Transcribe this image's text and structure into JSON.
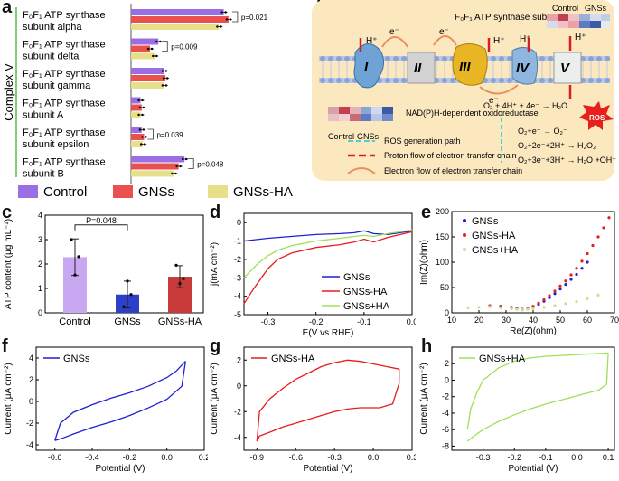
{
  "panels": {
    "a": "a",
    "b": "b",
    "c": "c",
    "d": "d",
    "e": "e",
    "f": "f",
    "g": "g",
    "h": "h"
  },
  "colors": {
    "control": "#9b6fe3",
    "gnss": "#e9514f",
    "gnssha": "#e6e08a",
    "gnsshaDot": "#c5e388",
    "blue": "#1f1fd6",
    "red": "#e81c1c",
    "green": "#9ee05a",
    "membrane": "#f6e2b3"
  },
  "chart_a": {
    "type": "bar",
    "ylabel_group": "Complex V",
    "categories": [
      {
        "line1": "F₀F₁ ATP synthase",
        "line2": "subunit alpha"
      },
      {
        "line1": "F₀F₁ ATP synthase",
        "line2": "subunit delta"
      },
      {
        "line1": "F₀F₁ ATP synthase",
        "line2": "subunit gamma"
      },
      {
        "line1": "F₀F₁ ATP synthase",
        "line2": "subunit A"
      },
      {
        "line1": "F₀F₁ ATP synthase",
        "line2": "subunit epsilon"
      },
      {
        "line1": "F₀F₁ ATP synthase",
        "line2": "subunit B"
      }
    ],
    "series": [
      {
        "name": "Control",
        "values": [
          78,
          23,
          28,
          8,
          9,
          45
        ]
      },
      {
        "name": "GNSs",
        "values": [
          82,
          16,
          29,
          9,
          11,
          40
        ]
      },
      {
        "name": "GNSs-HA",
        "values": [
          74,
          20,
          28,
          8,
          10,
          36
        ]
      }
    ],
    "pvalues": [
      {
        "cat": 0,
        "text": "p=0.021"
      },
      {
        "cat": 1,
        "text": "p=0.009"
      },
      {
        "cat": 4,
        "text": "p=0.039"
      },
      {
        "cat": 5,
        "text": "p=0.048"
      }
    ],
    "legend": [
      "Control",
      "GNSs",
      "GNSs-HA"
    ]
  },
  "diagram_b": {
    "complexes": [
      "I",
      "II",
      "III",
      "IV",
      "V"
    ],
    "labels": {
      "hplus": "H⁺",
      "eminus": "e⁻",
      "atp_title": "F₀F₁ ATP synthase subunit",
      "heat_control": "Control",
      "heat_gnss": "GNSs",
      "nadph": "NAD(P)H-dependent oxidoreductase",
      "water_rxn": "O₂ + 4H⁺ + 4e⁻ → H₂O",
      "ros": "ROS",
      "rxn1": "O₂+e⁻ → O₂⁻",
      "rxn2": "O₂+2e⁻+2H⁺ → H₂O₂",
      "rxn3": "O₂+3e⁻+3H⁺ → H₂O +OH⁻",
      "legend_ros": "ROS generation path",
      "legend_proton": "Proton flow of electron transfer chain",
      "legend_electron": "Electron flow of electron transfer chain"
    }
  },
  "chart_c": {
    "type": "bar",
    "categories": [
      "Control",
      "GNSs",
      "GNSs-HA"
    ],
    "values": [
      2.28,
      0.75,
      1.48
    ],
    "errors": [
      0.75,
      0.55,
      0.45
    ],
    "points": [
      [
        3.0,
        1.55,
        2.3
      ],
      [
        0.25,
        1.3,
        0.75
      ],
      [
        1.95,
        1.2,
        1.4
      ]
    ],
    "ylabel": "ATP content (μg mL⁻¹)",
    "ylim": [
      0,
      4
    ],
    "yticks": [
      "0",
      "1",
      "2",
      "3",
      "4"
    ],
    "annotation": "P=0.048"
  },
  "chart_d": {
    "type": "line",
    "xlabel": "E(V vs RHE)",
    "ylabel": "j(mA cm⁻²)",
    "xlim": [
      -0.35,
      0
    ],
    "ylim": [
      -5,
      0.5
    ],
    "xticks": [
      "-0.3",
      "-0.2",
      "-0.1",
      "0.0"
    ],
    "yticks": [
      "0",
      "-1",
      "-2",
      "-3",
      "-4",
      "-5"
    ],
    "series": [
      {
        "name": "GNSs",
        "x": [
          -0.35,
          -0.3,
          -0.2,
          -0.15,
          -0.12,
          -0.1,
          -0.08,
          -0.05,
          0
        ],
        "y": [
          -1.0,
          -0.85,
          -0.65,
          -0.6,
          -0.55,
          -0.45,
          -0.6,
          -0.65,
          -0.45
        ]
      },
      {
        "name": "GNSs-HA",
        "x": [
          -0.35,
          -0.33,
          -0.3,
          -0.28,
          -0.25,
          -0.2,
          -0.15,
          -0.12,
          -0.1,
          -0.08,
          -0.05,
          0
        ],
        "y": [
          -4.4,
          -3.6,
          -2.5,
          -2.0,
          -1.65,
          -1.35,
          -1.2,
          -1.05,
          -0.9,
          -1.05,
          -0.8,
          -0.5
        ]
      },
      {
        "name": "GNSs+HA",
        "x": [
          -0.35,
          -0.32,
          -0.3,
          -0.28,
          -0.25,
          -0.2,
          -0.15,
          -0.12,
          -0.1,
          -0.08,
          -0.05,
          0
        ],
        "y": [
          -3.0,
          -2.2,
          -1.8,
          -1.5,
          -1.25,
          -1.0,
          -0.85,
          -0.75,
          -0.7,
          -0.75,
          -0.6,
          -0.4
        ]
      }
    ],
    "legend": [
      "GNSs",
      "GNSs-HA",
      "GNSs+HA"
    ]
  },
  "chart_e": {
    "type": "scatter",
    "xlabel": "Re(Z)(ohm)",
    "ylabel": "Im(Z)(ohm)",
    "xlim": [
      10,
      70
    ],
    "ylim": [
      0,
      200
    ],
    "xticks": [
      "10",
      "20",
      "30",
      "40",
      "50",
      "60",
      "70"
    ],
    "yticks": [
      "0",
      "50",
      "100",
      "150",
      "200"
    ],
    "series": [
      {
        "name": "GNSs",
        "x": [
          24,
          28,
          32,
          34,
          36,
          38,
          40,
          42,
          44,
          46,
          48,
          50,
          52,
          54,
          56,
          58,
          60
        ],
        "y": [
          14,
          13,
          11,
          9,
          7,
          8,
          12,
          17,
          23,
          30,
          38,
          47,
          56,
          66,
          76,
          88,
          100
        ]
      },
      {
        "name": "GNSs-HA",
        "x": [
          24,
          28,
          32,
          34,
          36,
          38,
          40,
          42,
          44,
          46,
          48,
          50,
          52,
          54,
          56,
          58,
          60,
          62,
          64,
          66,
          68
        ],
        "y": [
          14,
          12,
          10,
          8,
          6,
          8,
          13,
          19,
          26,
          34,
          43,
          53,
          63,
          75,
          88,
          102,
          117,
          133,
          150,
          168,
          188
        ]
      },
      {
        "name": "GNSs+HA",
        "x": [
          16,
          20,
          24,
          28,
          32,
          34,
          36,
          38,
          40,
          44,
          48,
          52,
          56,
          60,
          64
        ],
        "y": [
          10,
          11,
          12,
          10,
          8,
          7,
          6,
          7,
          8,
          11,
          14,
          18,
          22,
          28,
          35
        ]
      }
    ],
    "legend": [
      "GNSs",
      "GNSs-HA",
      "GNSs+HA"
    ]
  },
  "chart_f": {
    "type": "line",
    "legend": "GNSs",
    "xlabel": "Potential (V)",
    "ylabel": "Current (μA cm⁻²)",
    "xlim": [
      -0.7,
      0.2
    ],
    "ylim": [
      -4.5,
      5
    ],
    "xticks": [
      "-0.6",
      "-0.4",
      "-0.2",
      "0.0",
      "0.2"
    ],
    "yticks": [
      "4",
      "2",
      "0",
      "-2",
      "-4"
    ],
    "upper": {
      "x": [
        -0.6,
        -0.57,
        -0.5,
        -0.4,
        -0.3,
        -0.2,
        -0.1,
        0.0,
        0.05,
        0.1
      ],
      "y": [
        -3.6,
        -2.0,
        -1.0,
        -0.3,
        0.3,
        0.8,
        1.4,
        2.2,
        2.8,
        3.7
      ]
    },
    "lower": {
      "x": [
        0.1,
        0.08,
        0.0,
        -0.1,
        -0.2,
        -0.3,
        -0.4,
        -0.5,
        -0.56,
        -0.6
      ],
      "y": [
        3.7,
        1.4,
        0.2,
        -0.6,
        -1.3,
        -1.9,
        -2.4,
        -3.0,
        -3.4,
        -3.6
      ]
    }
  },
  "chart_g": {
    "type": "line",
    "legend": "GNSs-HA",
    "xlabel": "Potential (V)",
    "ylabel": "Current (μA cm⁻²)",
    "xlim": [
      -1.0,
      0.3
    ],
    "ylim": [
      -5,
      3
    ],
    "xticks": [
      "-0.9",
      "-0.6",
      "-0.3",
      "0.0",
      "0.3"
    ],
    "yticks": [
      "2",
      "0",
      "-2",
      "-4"
    ],
    "upper": {
      "x": [
        -0.9,
        -0.88,
        -0.8,
        -0.7,
        -0.6,
        -0.5,
        -0.4,
        -0.3,
        -0.2,
        -0.1,
        0.0,
        0.1,
        0.2,
        0.2
      ],
      "y": [
        -4.3,
        -2.0,
        -1.0,
        -0.2,
        0.5,
        1.0,
        1.5,
        1.8,
        2.0,
        1.9,
        1.7,
        1.5,
        1.3,
        0.2
      ]
    },
    "lower": {
      "x": [
        0.2,
        0.15,
        0.05,
        -0.1,
        -0.2,
        -0.3,
        -0.4,
        -0.5,
        -0.6,
        -0.7,
        -0.8,
        -0.88,
        -0.9
      ],
      "y": [
        0.2,
        -1.4,
        -1.7,
        -1.7,
        -1.8,
        -2.0,
        -2.3,
        -2.6,
        -2.9,
        -3.2,
        -3.6,
        -3.9,
        -4.3
      ]
    }
  },
  "chart_h": {
    "type": "line",
    "legend": "GNSs+HA",
    "xlabel": "Potential (V)",
    "ylabel": "Current (μA cm⁻²)",
    "xlim": [
      -0.4,
      0.12
    ],
    "ylim": [
      -8.5,
      4
    ],
    "xticks": [
      "-0.3",
      "-0.2",
      "-0.1",
      "0.0",
      "0.1"
    ],
    "yticks": [
      "2",
      "0",
      "-2",
      "-4",
      "-6",
      "-8"
    ],
    "upper": {
      "x": [
        -0.35,
        -0.34,
        -0.32,
        -0.3,
        -0.25,
        -0.2,
        -0.15,
        -0.1,
        -0.05,
        0.0,
        0.05,
        0.1
      ],
      "y": [
        -6.0,
        -3.5,
        -1.5,
        0.0,
        1.5,
        2.3,
        2.7,
        2.9,
        3.0,
        3.1,
        3.2,
        3.3
      ]
    },
    "lower": {
      "x": [
        0.1,
        0.095,
        0.07,
        0.0,
        -0.05,
        -0.1,
        -0.15,
        -0.2,
        -0.25,
        -0.3,
        -0.33,
        -0.35
      ],
      "y": [
        3.3,
        -0.5,
        -1.2,
        -1.9,
        -2.4,
        -2.9,
        -3.5,
        -4.2,
        -5.0,
        -6.0,
        -6.8,
        -7.4
      ]
    }
  }
}
